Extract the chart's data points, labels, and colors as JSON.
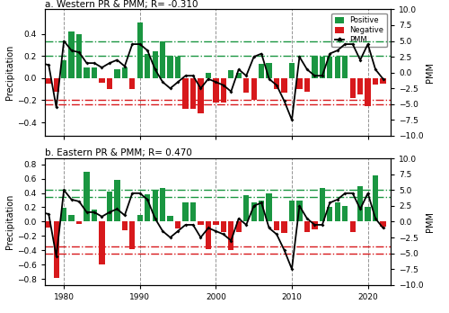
{
  "title_a": "a. Western PR & PMM; R= -0.310",
  "title_b": "b. Eastern PR & PMM; R= 0.470",
  "ylabel": "Precipitation",
  "ylabel2": "PMM",
  "years": [
    1977,
    1978,
    1979,
    1980,
    1981,
    1982,
    1983,
    1984,
    1985,
    1986,
    1987,
    1988,
    1989,
    1990,
    1991,
    1992,
    1993,
    1994,
    1995,
    1996,
    1997,
    1998,
    1999,
    2000,
    2001,
    2002,
    2003,
    2004,
    2005,
    2006,
    2007,
    2008,
    2009,
    2010,
    2011,
    2012,
    2013,
    2014,
    2015,
    2016,
    2017,
    2018,
    2019,
    2020,
    2021,
    2022
  ],
  "pr_west": [
    0.05,
    -0.05,
    -0.12,
    0.16,
    0.42,
    0.4,
    0.1,
    0.1,
    -0.04,
    -0.1,
    0.08,
    0.1,
    -0.1,
    0.5,
    0.22,
    0.24,
    0.33,
    0.2,
    0.19,
    -0.28,
    -0.28,
    -0.32,
    0.05,
    -0.22,
    -0.22,
    0.07,
    0.05,
    -0.13,
    -0.2,
    0.13,
    0.14,
    -0.1,
    -0.13,
    0.14,
    -0.1,
    -0.12,
    0.19,
    0.19,
    0.19,
    0.19,
    0.2,
    -0.18,
    -0.15,
    -0.25,
    -0.06,
    -0.05
  ],
  "pr_east": [
    0.07,
    -0.08,
    -0.78,
    0.19,
    0.09,
    -0.03,
    0.7,
    0.17,
    -0.6,
    0.42,
    0.58,
    -0.12,
    -0.38,
    0.09,
    0.38,
    0.44,
    0.47,
    0.08,
    -0.09,
    0.27,
    0.27,
    -0.05,
    -0.38,
    -0.05,
    -0.14,
    -0.4,
    -0.15,
    0.37,
    0.27,
    0.29,
    0.39,
    -0.12,
    -0.16,
    0.29,
    0.29,
    -0.14,
    -0.11,
    0.47,
    0.21,
    0.27,
    0.22,
    -0.14,
    0.49,
    0.2,
    0.65,
    -0.07
  ],
  "pmm": [
    1.5,
    1.2,
    -5.5,
    5.0,
    3.5,
    3.2,
    1.5,
    1.5,
    0.8,
    1.5,
    2.0,
    1.0,
    4.5,
    4.5,
    3.5,
    0.5,
    -1.5,
    -2.5,
    -1.5,
    -0.5,
    -0.5,
    -2.5,
    -1.0,
    -1.5,
    -2.0,
    -3.0,
    0.5,
    -0.5,
    2.5,
    3.0,
    -1.0,
    -2.0,
    -4.5,
    -7.5,
    2.5,
    0.5,
    -0.5,
    -0.5,
    3.0,
    3.5,
    4.5,
    4.5,
    2.0,
    4.5,
    0.5,
    -1.0
  ],
  "green_line_a": 0.2,
  "red_line_a": -0.2,
  "green_line_b": 0.35,
  "red_line_b": -0.35,
  "green_pmm_line": 5.0,
  "red_pmm_line": -5.0,
  "ylim_a": [
    -0.52,
    0.62
  ],
  "ylim_b": [
    -0.88,
    0.88
  ],
  "ylim2": [
    -10,
    10
  ],
  "yticks_a": [
    -0.4,
    -0.2,
    0.0,
    0.2,
    0.4
  ],
  "yticks_b": [
    -0.8,
    -0.6,
    -0.4,
    -0.2,
    0.0,
    0.2,
    0.4,
    0.6,
    0.8
  ],
  "yticks2": [
    -10.0,
    -7.5,
    -5.0,
    -2.5,
    0.0,
    2.5,
    5.0,
    7.5,
    10.0
  ],
  "vlines": [
    1980,
    1990,
    2000,
    2010,
    2020
  ],
  "positive_color": "#1a9641",
  "negative_color": "#d7191c",
  "pmm_color": "#000000",
  "background_color": "#ffffff",
  "bar_width": 0.75
}
